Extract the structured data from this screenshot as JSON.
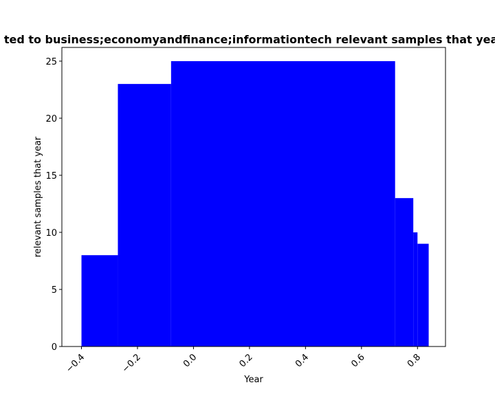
{
  "chart_data": {
    "type": "bar",
    "title": "ted to business;economyandfinance;informationtech relevant samples that year",
    "xlabel": "Year",
    "ylabel": "relevant samples that year",
    "xlim": [
      -0.47,
      0.9
    ],
    "ylim": [
      0,
      26.2
    ],
    "grid": false,
    "color": "#0000ff",
    "bars": [
      {
        "x0": -0.4,
        "x1": -0.27,
        "value": 8
      },
      {
        "x0": -0.27,
        "x1": -0.08,
        "value": 23
      },
      {
        "x0": -0.08,
        "x1": 0.72,
        "value": 25
      },
      {
        "x0": 0.72,
        "x1": 0.785,
        "value": 13
      },
      {
        "x0": 0.785,
        "x1": 0.8,
        "value": 10
      },
      {
        "x0": 0.8,
        "x1": 0.84,
        "value": 9
      }
    ],
    "xticks": [
      {
        "value": -0.4,
        "label": "−0.4"
      },
      {
        "value": -0.2,
        "label": "−0.2"
      },
      {
        "value": 0.0,
        "label": "0.0"
      },
      {
        "value": 0.2,
        "label": "0.2"
      },
      {
        "value": 0.4,
        "label": "0.4"
      },
      {
        "value": 0.6,
        "label": "0.6"
      },
      {
        "value": 0.8,
        "label": "0.8"
      }
    ],
    "yticks": [
      {
        "value": 0,
        "label": "0"
      },
      {
        "value": 5,
        "label": "5"
      },
      {
        "value": 10,
        "label": "10"
      },
      {
        "value": 15,
        "label": "15"
      },
      {
        "value": 20,
        "label": "20"
      },
      {
        "value": 25,
        "label": "25"
      }
    ]
  }
}
